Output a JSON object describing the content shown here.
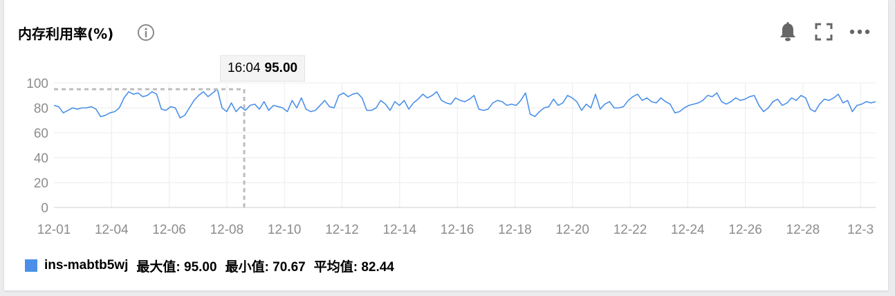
{
  "header": {
    "title": "内存利用率(%)"
  },
  "icons": {
    "info": "info-icon",
    "alarm": "bell-icon",
    "fullscreen": "fullscreen-icon",
    "more": "more-icon"
  },
  "tooltip": {
    "time": "16:04",
    "value": "95.00"
  },
  "legend": {
    "series_name": "ins-mabtb5wj",
    "max": "最大值: 95.00",
    "min": "最小值: 70.67",
    "avg": "平均值: 82.44"
  },
  "colors": {
    "line": "#4a90e8",
    "grid": "#ebebeb",
    "axis_text": "#8c8c8c",
    "crosshair": "#bdbdbd"
  },
  "chart_data": {
    "type": "line",
    "title": "内存利用率(%)",
    "xlabel": "",
    "ylabel": "",
    "ylim": [
      0,
      100
    ],
    "yticks": [
      "0",
      "20",
      "40",
      "60",
      "80",
      "100"
    ],
    "xticks": [
      "12-01",
      "12-04",
      "12-06",
      "12-08",
      "12-10",
      "12-12",
      "12-14",
      "12-16",
      "12-18",
      "12-20",
      "12-22",
      "12-24",
      "12-26",
      "12-28",
      "12-3"
    ],
    "grid": true,
    "legend_position": "bottom-left",
    "series": [
      {
        "name": "ins-mabtb5wj",
        "x_day_range": [
          0,
          29.5
        ],
        "values": [
          82,
          81,
          76,
          78,
          80,
          79,
          80,
          80,
          81,
          79,
          73,
          74,
          76,
          77,
          80,
          88,
          93,
          91,
          92,
          89,
          90,
          93,
          91,
          79,
          78,
          81,
          80,
          72,
          74,
          80,
          86,
          90,
          93,
          89,
          92,
          95,
          80,
          77,
          84,
          77,
          81,
          78,
          82,
          83,
          79,
          85,
          78,
          82,
          81,
          80,
          77,
          86,
          80,
          88,
          79,
          77,
          78,
          82,
          86,
          81,
          80,
          90,
          92,
          89,
          91,
          92,
          88,
          78,
          78,
          80,
          86,
          83,
          78,
          85,
          82,
          86,
          79,
          84,
          87,
          91,
          88,
          90,
          93,
          86,
          84,
          83,
          88,
          86,
          85,
          87,
          90,
          79,
          78,
          79,
          84,
          86,
          85,
          82,
          83,
          82,
          86,
          92,
          75,
          73,
          77,
          80,
          81,
          87,
          82,
          84,
          90,
          88,
          85,
          78,
          83,
          80,
          91,
          79,
          83,
          85,
          80,
          80,
          81,
          86,
          89,
          91,
          86,
          88,
          85,
          84,
          88,
          85,
          83,
          76,
          77,
          80,
          82,
          83,
          84,
          86,
          90,
          89,
          92,
          85,
          83,
          85,
          88,
          86,
          87,
          89,
          90,
          82,
          77,
          80,
          85,
          87,
          82,
          84,
          88,
          86,
          90,
          88,
          79,
          77,
          83,
          87,
          86,
          88,
          91,
          84,
          86,
          77,
          82,
          83,
          85,
          84,
          85
        ]
      }
    ],
    "highlight": {
      "label": "16:04",
      "value": 95.0,
      "day": 6.83
    }
  }
}
